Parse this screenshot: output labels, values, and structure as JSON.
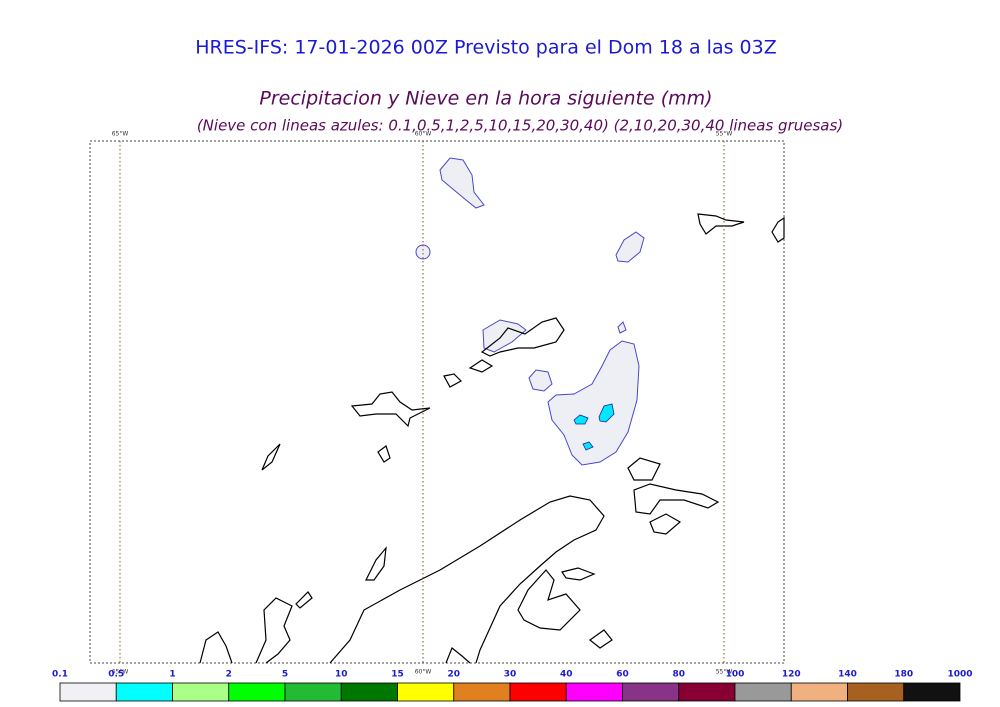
{
  "header": {
    "title": "HRES-IFS: 17-01-2026 00Z Previsto para el Dom 18 a las 03Z",
    "subtitle": "Precipitacion y Nieve en la hora siguiente (mm)",
    "note": "(Nieve con lineas azules: 0.1,0.5,1,2,5,10,15,20,30,40)  (2,10,20,30,40 lineas gruesas)"
  },
  "map": {
    "meridians": [
      "65°W",
      "60°W",
      "55°W"
    ]
  },
  "legend": {
    "labels": [
      "0.1",
      "0.5",
      "1",
      "2",
      "5",
      "10",
      "15",
      "20",
      "30",
      "40",
      "60",
      "80",
      "100",
      "120",
      "140",
      "180",
      "1000"
    ],
    "colors": [
      "#f0f0f5",
      "#00ffff",
      "#aaff88",
      "#00ff00",
      "#22bb33",
      "#007700",
      "#ffff00",
      "#e08020",
      "#ff0000",
      "#ff00ff",
      "#883388",
      "#880033",
      "#999999",
      "#f0b080",
      "#a86020",
      "#111111"
    ]
  }
}
